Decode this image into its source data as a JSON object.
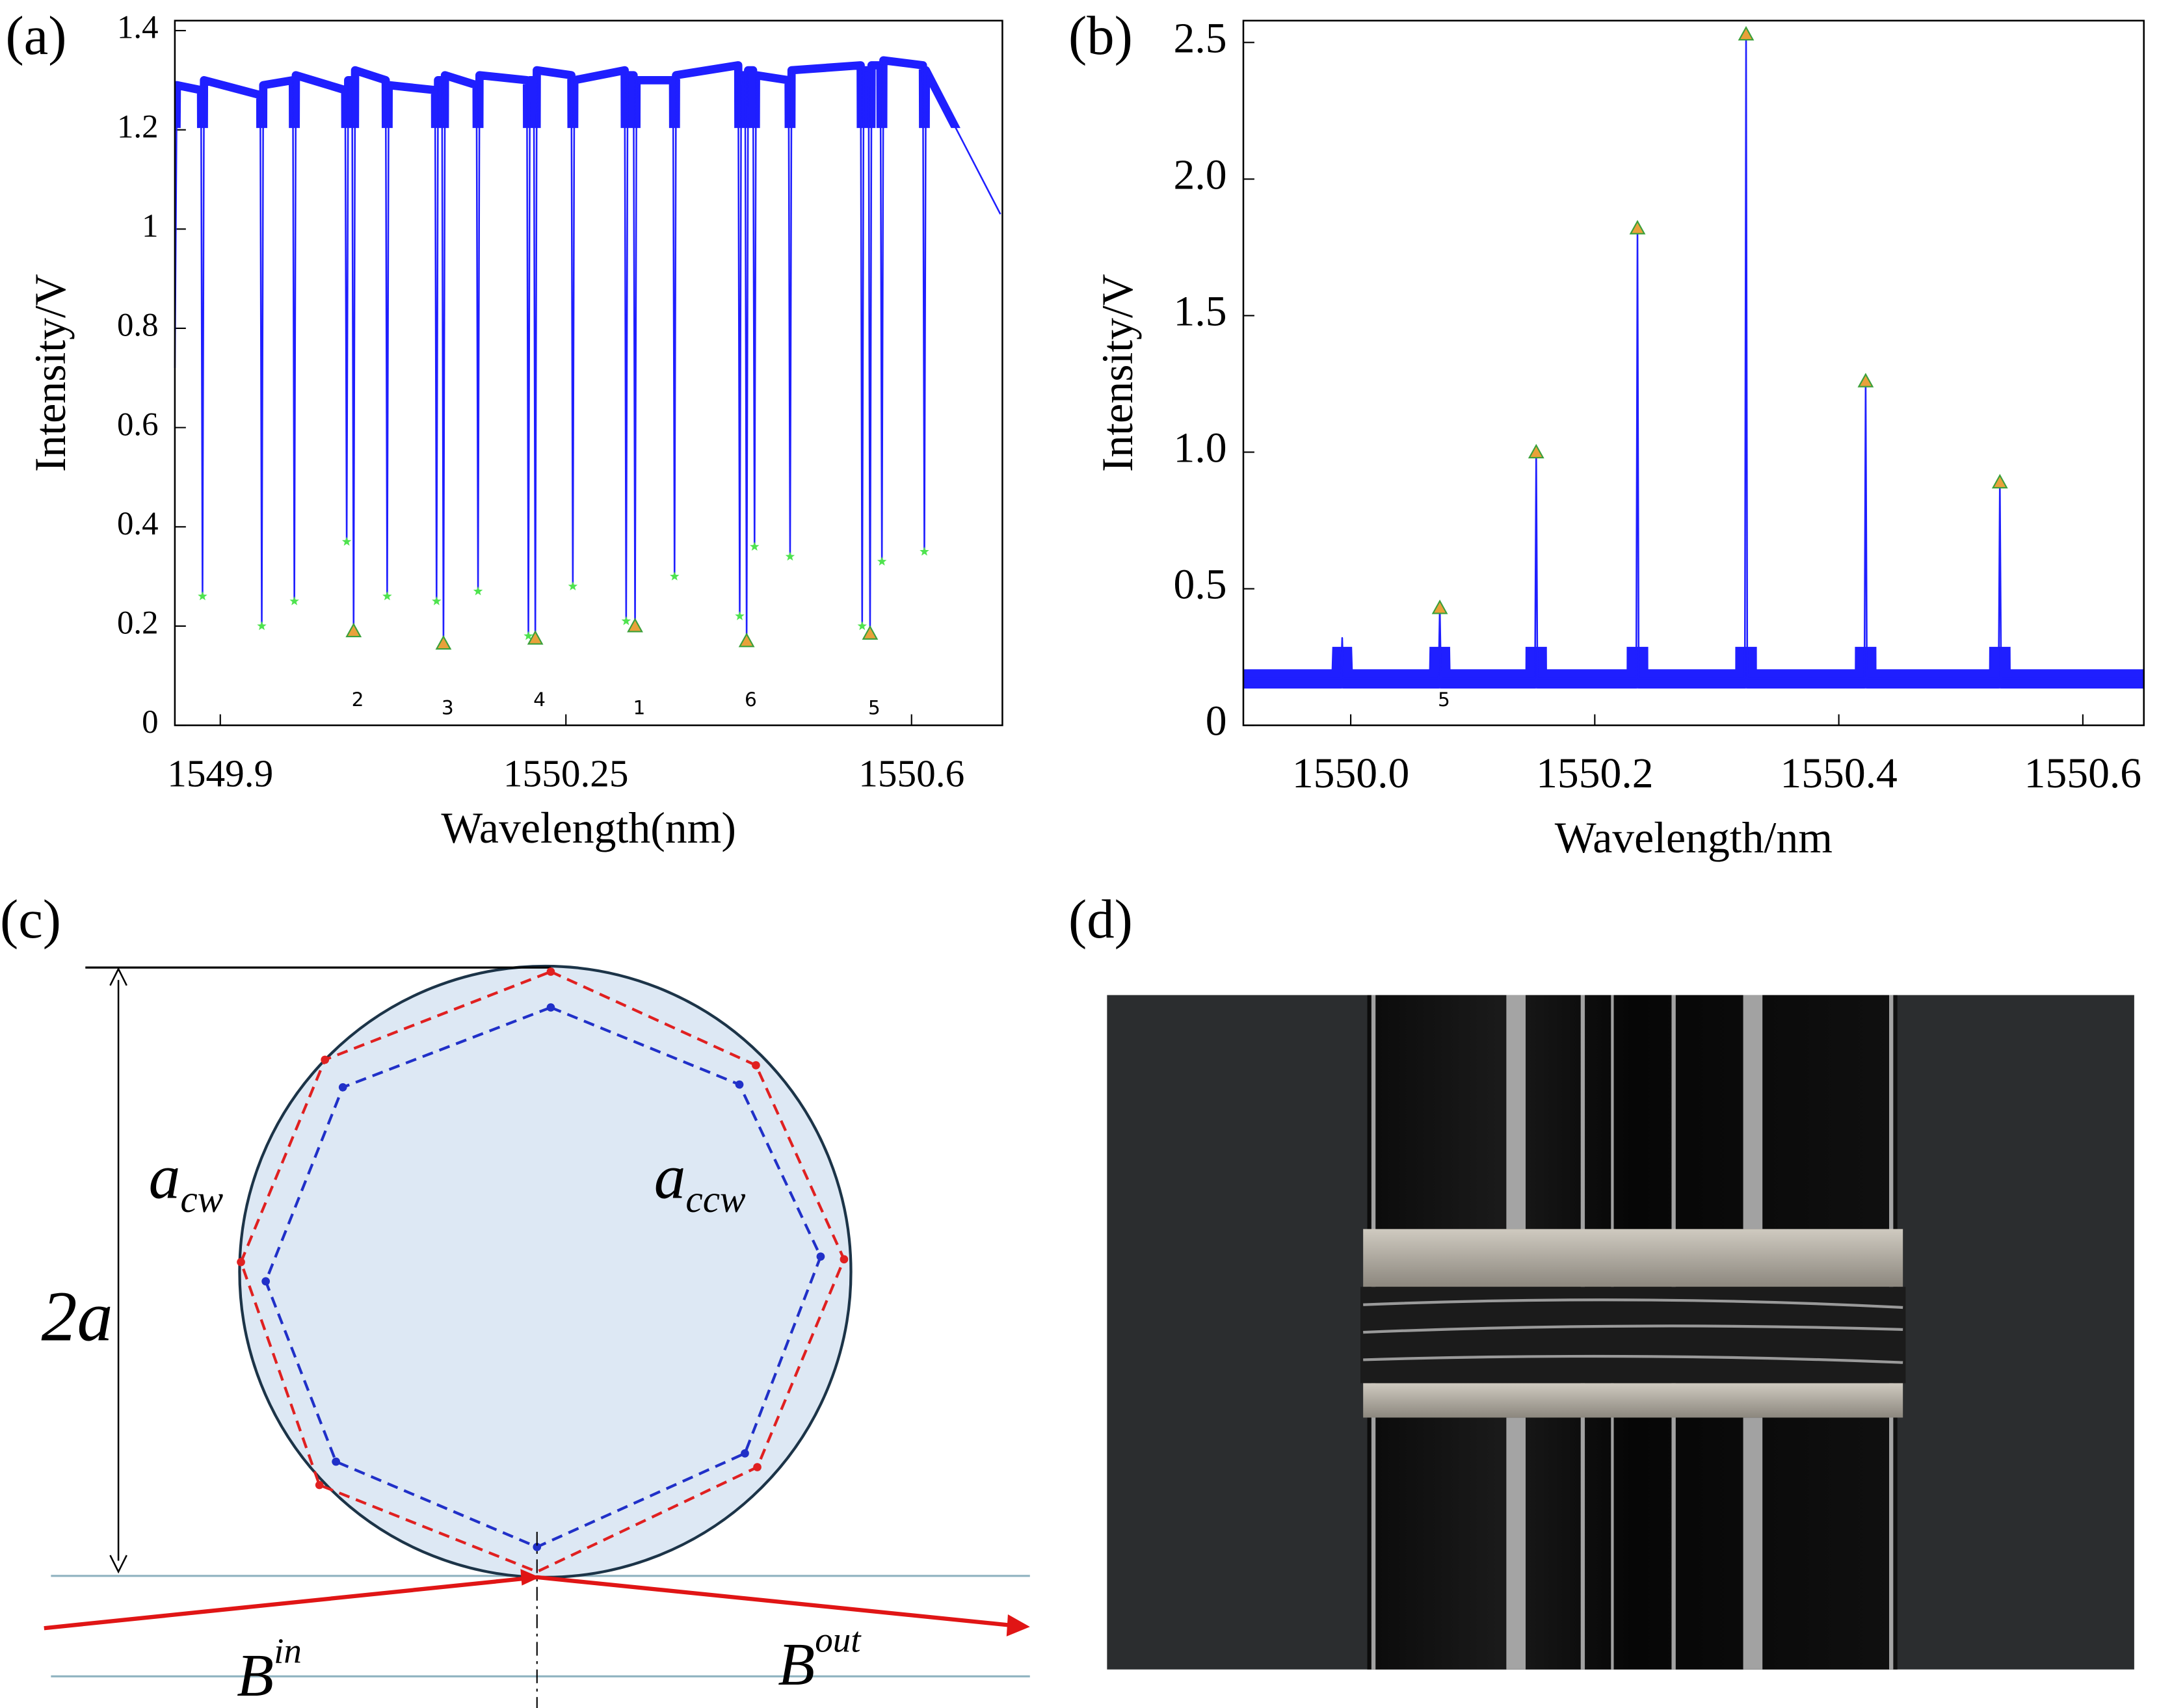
{
  "chart_data": [
    {
      "type": "line",
      "panel_label": "(a)",
      "x_label": "Wavelength(nm)",
      "y_label": "Intensity/V",
      "xlim": [
        1549.854,
        1550.692
      ],
      "ylim": [
        0,
        1.42
      ],
      "xticks": [
        1549.9,
        1550.25,
        1550.6
      ],
      "yticks": [
        0,
        0.2,
        0.4,
        0.6,
        0.8,
        1,
        1.2,
        1.4
      ],
      "series": [
        {
          "type": "line",
          "color": "#1f1fff",
          "x": [
            1549.854,
            1549.856,
            1549.8805,
            1549.882,
            1549.8835,
            1549.9405,
            1549.942,
            1549.9435,
            1549.9735,
            1549.975,
            1549.9765,
            1550.0265,
            1550.028,
            1550.0295,
            1550.0335,
            1550.035,
            1550.0365,
            1550.0675,
            1550.069,
            1550.0705,
            1550.1175,
            1550.119,
            1550.1205,
            1550.1245,
            1550.126,
            1550.1275,
            1550.1595,
            1550.161,
            1550.1625,
            1550.2105,
            1550.212,
            1550.2135,
            1550.2175,
            1550.219,
            1550.2205,
            1550.2555,
            1550.257,
            1550.2585,
            1550.3095,
            1550.311,
            1550.3125,
            1550.3185,
            1550.32,
            1550.3215,
            1550.3585,
            1550.36,
            1550.3615,
            1550.4245,
            1550.426,
            1550.4275,
            1550.4315,
            1550.433,
            1550.4345,
            1550.4395,
            1550.441,
            1550.4425,
            1550.4755,
            1550.477,
            1550.4785,
            1550.5485,
            1550.55,
            1550.5515,
            1550.5565,
            1550.558,
            1550.5595,
            1550.5685,
            1550.57,
            1550.5715,
            1550.6115,
            1550.613,
            1550.6145,
            1550.69
          ],
          "values": [
            0.72,
            1.29,
            1.28,
            0.26,
            1.3,
            1.27,
            0.2,
            1.29,
            1.3,
            0.25,
            1.31,
            1.28,
            0.37,
            1.3,
            1.3,
            0.19,
            1.32,
            1.3,
            0.26,
            1.29,
            1.28,
            0.25,
            1.3,
            1.3,
            0.165,
            1.31,
            1.29,
            0.27,
            1.31,
            1.3,
            0.18,
            1.3,
            1.3,
            0.175,
            1.32,
            1.31,
            0.28,
            1.3,
            1.32,
            0.21,
            1.31,
            1.31,
            0.2,
            1.3,
            1.3,
            0.3,
            1.31,
            1.33,
            0.22,
            1.31,
            1.31,
            0.17,
            1.32,
            1.32,
            0.36,
            1.31,
            1.3,
            0.34,
            1.32,
            1.33,
            0.2,
            1.32,
            1.32,
            0.185,
            1.33,
            1.33,
            0.33,
            1.34,
            1.33,
            0.35,
            1.32,
            1.03
          ]
        },
        {
          "type": "scatter",
          "marker": "star",
          "color": "#4fe34f",
          "x": [
            1549.882,
            1549.942,
            1549.975,
            1550.028,
            1550.069,
            1550.119,
            1550.161,
            1550.212,
            1550.257,
            1550.311,
            1550.36,
            1550.426,
            1550.441,
            1550.477,
            1550.55,
            1550.57,
            1550.613
          ],
          "values": [
            0.26,
            0.2,
            0.25,
            0.37,
            0.26,
            0.25,
            0.27,
            0.18,
            0.28,
            0.21,
            0.3,
            0.22,
            0.36,
            0.34,
            0.2,
            0.33,
            0.35
          ]
        },
        {
          "type": "scatter",
          "marker": "triangle",
          "color": "#e9a13b",
          "x": [
            1550.035,
            1550.126,
            1550.219,
            1550.32,
            1550.433,
            1550.558
          ],
          "values": [
            0.19,
            0.165,
            0.175,
            0.2,
            0.17,
            0.185
          ],
          "peak_labels": [
            "2",
            "3",
            "4",
            "1",
            "6",
            "5"
          ]
        }
      ]
    },
    {
      "type": "line",
      "panel_label": "(b)",
      "x_label": "Wavelength/nm",
      "y_label": "Intensity/V",
      "xlim": [
        1549.912,
        1550.65
      ],
      "ylim": [
        0,
        2.58
      ],
      "xticks": [
        {
          "value": 1550,
          "label": "1550.0"
        },
        1550.2,
        1550.4,
        1550.6
      ],
      "yticks": [
        0,
        0.5,
        {
          "value": 1,
          "label": "1.0"
        },
        1.5,
        {
          "value": 2,
          "label": "2.0"
        },
        2.5
      ],
      "series": [
        {
          "type": "line",
          "color": "#1f1fff",
          "x": [
            1549.912,
            1549.992,
            1549.993,
            1549.994,
            1550.072,
            1550.073,
            1550.074,
            1550.151,
            1550.152,
            1550.153,
            1550.234,
            1550.235,
            1550.236,
            1550.323,
            1550.324,
            1550.325,
            1550.421,
            1550.422,
            1550.423,
            1550.531,
            1550.532,
            1550.533,
            1550.65
          ],
          "values": [
            0.17,
            0.17,
            0.32,
            0.17,
            0.17,
            0.43,
            0.17,
            0.17,
            1.0,
            0.17,
            0.17,
            1.82,
            0.17,
            0.17,
            2.53,
            0.17,
            0.17,
            1.26,
            0.17,
            0.17,
            0.89,
            0.17,
            0.17
          ]
        },
        {
          "type": "scatter",
          "marker": "triangle",
          "color": "#e9a13b",
          "x": [
            1550.073,
            1550.152,
            1550.235,
            1550.324,
            1550.422,
            1550.532
          ],
          "values": [
            0.43,
            1.0,
            1.82,
            2.53,
            1.26,
            0.89
          ],
          "peak_labels": [
            "5",
            null,
            null,
            null,
            null,
            null
          ]
        }
      ]
    }
  ],
  "diagram": {
    "panel_label": "(c)",
    "diameter_label": "2a",
    "cw_label": {
      "base": "a",
      "sub": "cw"
    },
    "ccw_label": {
      "base": "a",
      "sub": "ccw"
    },
    "in_label": {
      "base": "B",
      "sup": "in"
    },
    "out_label": {
      "base": "B",
      "sup": "out"
    }
  },
  "photo": {
    "panel_label": "(d)"
  }
}
